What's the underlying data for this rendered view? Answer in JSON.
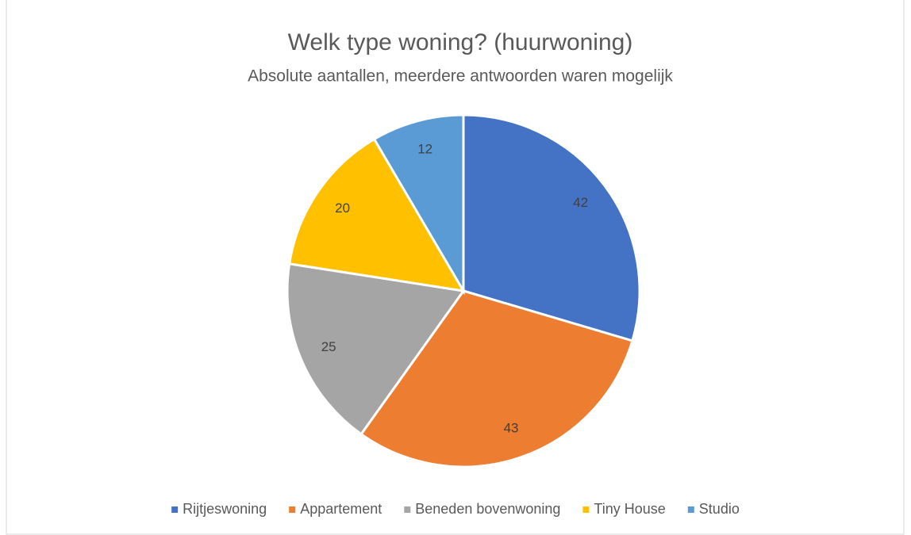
{
  "chart_data": {
    "type": "pie",
    "title": "Welk type woning? (huurwoning)",
    "subtitle": "Absolute aantallen, meerdere antwoorden waren mogelijk",
    "categories": [
      "Rijtjeswoning",
      "Appartement",
      "Beneden bovenwoning",
      "Tiny House",
      "Studio"
    ],
    "values": [
      42,
      43,
      25,
      20,
      12
    ],
    "colors": [
      "#4472c4",
      "#ed7d31",
      "#a5a5a5",
      "#ffc000",
      "#5b9bd5"
    ],
    "legend": "bottom"
  }
}
